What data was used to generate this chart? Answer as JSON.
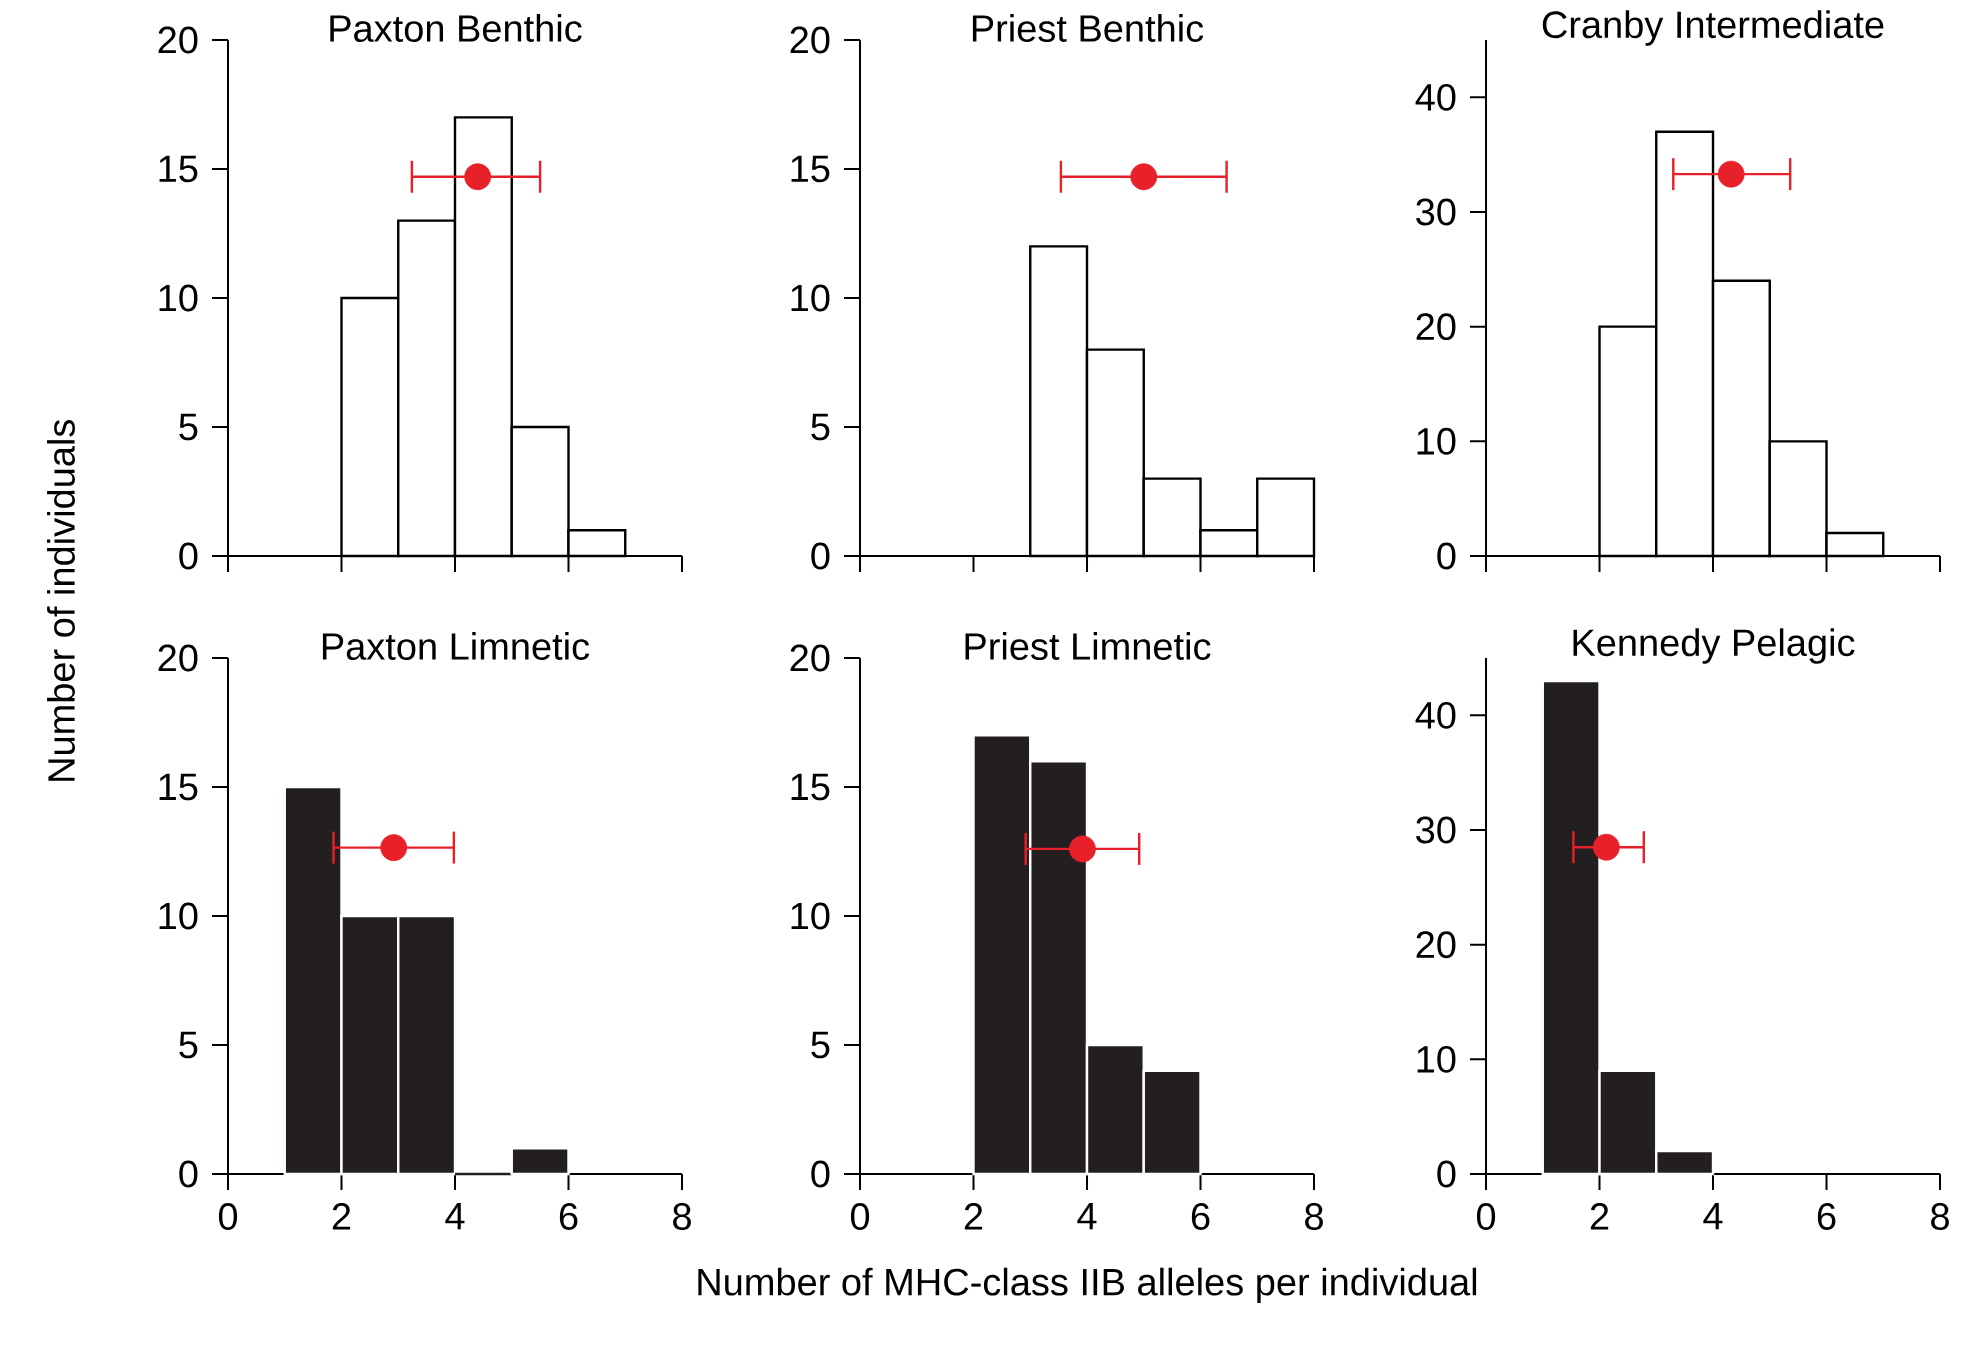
{
  "chart_data": [
    {
      "type": "histogram",
      "title": "Paxton Benthic",
      "bins": [
        2,
        3,
        4,
        5,
        6,
        7
      ],
      "values": [
        10,
        13,
        17,
        5,
        1
      ],
      "color": "#ffffff",
      "xlim": [
        0,
        8
      ],
      "xticks": [
        0,
        2,
        4,
        6,
        8
      ],
      "ylim": [
        0,
        20
      ],
      "yticks": [
        0,
        5,
        10,
        15,
        20
      ],
      "tick_labels": "y",
      "marker": "circle",
      "series": [
        {
          "type": "scatter",
          "color": "#e8202a",
          "x": [
            4.4
          ],
          "values": [
            14.7
          ],
          "xerrors": [
            [
              3.24,
              5.5
            ]
          ]
        }
      ]
    },
    {
      "type": "histogram",
      "title": "Priest Benthic",
      "bins": [
        3,
        4,
        5,
        6,
        7,
        8
      ],
      "values": [
        12,
        8,
        3,
        1,
        3
      ],
      "color": "#ffffff",
      "xlim": [
        0,
        8
      ],
      "xticks": [
        0,
        2,
        4,
        6,
        8
      ],
      "ylim": [
        0,
        20
      ],
      "yticks": [
        0,
        5,
        10,
        15,
        20
      ],
      "tick_labels": "y",
      "marker": "circle",
      "series": [
        {
          "type": "scatter",
          "color": "#e8202a",
          "x": [
            5.0
          ],
          "values": [
            14.7
          ],
          "xerrors": [
            [
              3.54,
              6.46
            ]
          ]
        }
      ]
    },
    {
      "type": "histogram",
      "title": "Cranby Intermediate",
      "bins": [
        2,
        3,
        4,
        5,
        6,
        7
      ],
      "values": [
        20,
        37,
        24,
        10,
        2
      ],
      "color": "#ffffff",
      "xlim": [
        0,
        8
      ],
      "xticks": [
        0,
        2,
        4,
        6,
        8
      ],
      "ylim": [
        0,
        45
      ],
      "yticks": [
        0,
        10,
        20,
        30,
        40
      ],
      "tick_labels": "y",
      "marker": "circle",
      "series": [
        {
          "type": "scatter",
          "color": "#e8202a",
          "x": [
            4.32
          ],
          "values": [
            33.3
          ],
          "xerrors": [
            [
              3.3,
              5.36
            ]
          ]
        }
      ]
    },
    {
      "type": "histogram",
      "title": "Paxton Limnetic",
      "ylabel": "Number of individuals",
      "bins": [
        1,
        2,
        3,
        4,
        5,
        6
      ],
      "values": [
        15,
        10,
        10,
        0,
        1
      ],
      "color": "#231f20",
      "xlim": [
        0,
        8
      ],
      "xticks": [
        0,
        2,
        4,
        6,
        8
      ],
      "ylim": [
        0,
        20
      ],
      "yticks": [
        0,
        5,
        10,
        15,
        20
      ],
      "marker": "circle",
      "series": [
        {
          "type": "scatter",
          "color": "#e8202a",
          "x": [
            2.92
          ],
          "values": [
            12.65
          ],
          "xerrors": [
            [
              1.86,
              3.98
            ]
          ]
        }
      ]
    },
    {
      "type": "histogram",
      "title": "Priest Limnetic",
      "xlabel": "Number of MHC-class IIB alleles per individual",
      "bins": [
        2,
        3,
        4,
        5,
        6
      ],
      "values": [
        17,
        16,
        5,
        4
      ],
      "color": "#231f20",
      "xlim": [
        0,
        8
      ],
      "xticks": [
        0,
        2,
        4,
        6,
        8
      ],
      "ylim": [
        0,
        20
      ],
      "yticks": [
        0,
        5,
        10,
        15,
        20
      ],
      "marker": "circle",
      "series": [
        {
          "type": "scatter",
          "color": "#e8202a",
          "x": [
            3.92
          ],
          "values": [
            12.6
          ],
          "xerrors": [
            [
              2.92,
              4.92
            ]
          ]
        }
      ]
    },
    {
      "type": "histogram",
      "title": "Kennedy Pelagic",
      "bins": [
        1,
        2,
        3,
        4
      ],
      "values": [
        43,
        9,
        2
      ],
      "color": "#231f20",
      "xlim": [
        0,
        8
      ],
      "xticks": [
        0,
        2,
        4,
        6,
        8
      ],
      "ylim": [
        0,
        45
      ],
      "yticks": [
        0,
        10,
        20,
        30,
        40
      ],
      "marker": "circle",
      "series": [
        {
          "type": "scatter",
          "color": "#e8202a",
          "x": [
            2.12
          ],
          "values": [
            28.5
          ],
          "xerrors": [
            [
              1.54,
              2.78
            ]
          ]
        }
      ]
    }
  ]
}
